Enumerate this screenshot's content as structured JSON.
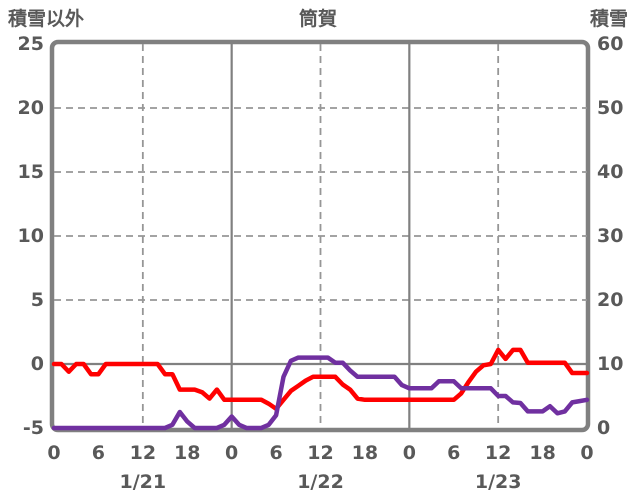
{
  "header": {
    "left_axis_title": "積雪以外",
    "chart_title": "筒賀",
    "right_axis_title": "積雪"
  },
  "colors": {
    "red_line": "#ff0000",
    "purple_line": "#7030a0",
    "frame": "#808080",
    "grid_solid": "#808080",
    "grid_dashed": "#969696",
    "text": "#595959",
    "background": "#ffffff"
  },
  "chart_data": {
    "type": "line",
    "title": "筒賀",
    "x_unit": "hours over 3 days",
    "x_range": [
      0,
      72
    ],
    "left_axis": {
      "title": "積雪以外",
      "min": -5,
      "max": 25,
      "tick_values": [
        25,
        20,
        15,
        10,
        5,
        0,
        -5
      ],
      "tick_labels": [
        "25",
        "20",
        "15",
        "10",
        "5",
        "0",
        "-5"
      ]
    },
    "right_axis": {
      "title": "積雪",
      "min": 0,
      "max": 60,
      "tick_values": [
        60,
        50,
        40,
        30,
        20,
        10,
        0
      ],
      "tick_labels": [
        "60",
        "50",
        "40",
        "30",
        "20",
        "10",
        "0"
      ]
    },
    "x_ticks": {
      "hours": [
        0,
        6,
        12,
        18,
        24,
        30,
        36,
        42,
        48,
        54,
        60,
        66,
        72
      ],
      "labels": [
        "0",
        "6",
        "12",
        "18",
        "0",
        "6",
        "12",
        "18",
        "0",
        "6",
        "12",
        "18",
        "0"
      ]
    },
    "date_labels": [
      {
        "label": "1/21",
        "hour": 12
      },
      {
        "label": "1/22",
        "hour": 36
      },
      {
        "label": "1/23",
        "hour": 60
      }
    ],
    "gridlines": {
      "horizontal_solid_left_values": [
        0
      ],
      "horizontal_dashed_left_values": [
        20,
        15,
        10,
        5
      ],
      "vertical_solid_hours": [
        24,
        48
      ],
      "vertical_dashed_hours": [
        12,
        36,
        60
      ]
    },
    "series": [
      {
        "name": "積雪以外",
        "axis": "left",
        "color_key": "red_line",
        "x_step_hours": 1,
        "values": [
          0,
          0,
          -0.6,
          0,
          0,
          -0.8,
          -0.8,
          0,
          0,
          0,
          0,
          0,
          0,
          0,
          0,
          -0.8,
          -0.8,
          -2,
          -2,
          -2,
          -2.2,
          -2.7,
          -2,
          -2.8,
          -2.8,
          -2.8,
          -2.8,
          -2.8,
          -2.8,
          -3.1,
          -3.5,
          -2.8,
          -2.1,
          -1.7,
          -1.3,
          -1,
          -1,
          -1,
          -1,
          -1.6,
          -2,
          -2.7,
          -2.8,
          -2.8,
          -2.8,
          -2.8,
          -2.8,
          -2.8,
          -2.8,
          -2.8,
          -2.8,
          -2.8,
          -2.8,
          -2.8,
          -2.8,
          -2.3,
          -1.4,
          -0.6,
          -0.1,
          0,
          1.1,
          0.4,
          1.1,
          1.1,
          0.1,
          0.1,
          0.1,
          0.1,
          0.1,
          0.1,
          -0.7,
          -0.7,
          -0.7
        ]
      },
      {
        "name": "積雪",
        "axis": "right",
        "color_key": "purple_line",
        "x_step_hours": 1,
        "values": [
          0,
          0,
          0,
          0,
          0,
          0,
          0,
          0,
          0,
          0,
          0,
          0,
          0,
          0,
          0,
          0,
          0.5,
          2.5,
          1,
          0,
          0,
          0,
          0,
          0.5,
          1.8,
          0.5,
          0,
          0,
          0,
          0.5,
          2,
          8,
          10.5,
          11,
          11,
          11,
          11,
          11,
          10.2,
          10.2,
          9,
          8,
          8,
          8,
          8,
          8,
          8,
          6.7,
          6.2,
          6.2,
          6.2,
          6.2,
          7.3,
          7.3,
          7.3,
          6.2,
          6.2,
          6.2,
          6.2,
          6.2,
          5,
          5,
          4,
          3.9,
          2.6,
          2.6,
          2.6,
          3.4,
          2.3,
          2.6,
          4,
          4.2,
          4.4
        ]
      }
    ]
  }
}
